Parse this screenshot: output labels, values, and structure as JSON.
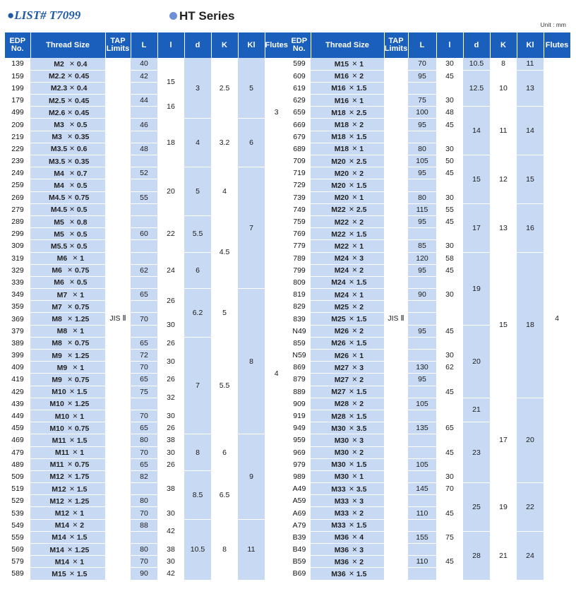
{
  "header": {
    "list_title": "●LIST# T7099",
    "series_title": "HT Series",
    "unit": "Unit : mm"
  },
  "columns": [
    "EDP No.",
    "Thread Size",
    "TAP Limits",
    "L",
    "l",
    "d",
    "K",
    "Kl",
    "Flutes"
  ],
  "left_table": {
    "rows": [
      {
        "edp": "139",
        "thread": "M2 × 0.4",
        "L": "40"
      },
      {
        "edp": "159",
        "thread": "M2.2 × 0.45",
        "L": "42"
      },
      {
        "edp": "199",
        "thread": "M2.3 × 0.4",
        "L": ""
      },
      {
        "edp": "179",
        "thread": "M2.5 × 0.45",
        "L": "44"
      },
      {
        "edp": "499",
        "thread": "M2.6 × 0.45",
        "L": ""
      },
      {
        "edp": "209",
        "thread": "M3 × 0.5",
        "L": "46"
      },
      {
        "edp": "219",
        "thread": "M3 × 0.35",
        "L": ""
      },
      {
        "edp": "229",
        "thread": "M3.5 × 0.6",
        "L": "48"
      },
      {
        "edp": "239",
        "thread": "M3.5 × 0.35",
        "L": ""
      },
      {
        "edp": "249",
        "thread": "M4 × 0.7",
        "L": "52"
      },
      {
        "edp": "259",
        "thread": "M4 × 0.5",
        "L": ""
      },
      {
        "edp": "269",
        "thread": "M4.5 × 0.75",
        "L": "55"
      },
      {
        "edp": "279",
        "thread": "M4.5 × 0.5",
        "L": ""
      },
      {
        "edp": "289",
        "thread": "M5 × 0.8",
        "L": ""
      },
      {
        "edp": "299",
        "thread": "M5 × 0.5",
        "L": "60"
      },
      {
        "edp": "309",
        "thread": "M5.5 × 0.5",
        "L": ""
      },
      {
        "edp": "319",
        "thread": "M6 × 1",
        "L": ""
      },
      {
        "edp": "329",
        "thread": "M6 × 0.75",
        "L": "62"
      },
      {
        "edp": "339",
        "thread": "M6 × 0.5",
        "L": ""
      },
      {
        "edp": "349",
        "thread": "M7 × 1",
        "L": "65"
      },
      {
        "edp": "359",
        "thread": "M7 × 0.75",
        "L": ""
      },
      {
        "edp": "369",
        "thread": "M8 × 1.25",
        "L": "70"
      },
      {
        "edp": "379",
        "thread": "M8 × 1",
        "L": ""
      },
      {
        "edp": "389",
        "thread": "M8 × 0.75",
        "L": "65"
      },
      {
        "edp": "399",
        "thread": "M9 × 1.25",
        "L": "72"
      },
      {
        "edp": "409",
        "thread": "M9 × 1",
        "L": "70"
      },
      {
        "edp": "419",
        "thread": "M9 × 0.75",
        "L": "65"
      },
      {
        "edp": "429",
        "thread": "M10 × 1.5",
        "L": "75"
      },
      {
        "edp": "439",
        "thread": "M10 × 1.25",
        "L": ""
      },
      {
        "edp": "449",
        "thread": "M10 × 1",
        "L": "70"
      },
      {
        "edp": "459",
        "thread": "M10 × 0.75",
        "L": "65"
      },
      {
        "edp": "469",
        "thread": "M11 × 1.5",
        "L": "80"
      },
      {
        "edp": "479",
        "thread": "M11 × 1",
        "L": "70"
      },
      {
        "edp": "489",
        "thread": "M11 × 0.75",
        "L": "65"
      },
      {
        "edp": "509",
        "thread": "M12 × 1.75",
        "L": "82"
      },
      {
        "edp": "519",
        "thread": "M12 × 1.5",
        "L": ""
      },
      {
        "edp": "529",
        "thread": "M12 × 1.25",
        "L": "80"
      },
      {
        "edp": "539",
        "thread": "M12 × 1",
        "L": "70"
      },
      {
        "edp": "549",
        "thread": "M14 × 2",
        "L": "88"
      },
      {
        "edp": "559",
        "thread": "M14 × 1.5",
        "L": ""
      },
      {
        "edp": "569",
        "thread": "M14 × 1.25",
        "L": "80"
      },
      {
        "edp": "579",
        "thread": "M14 × 1",
        "L": "70"
      },
      {
        "edp": "589",
        "thread": "M15 × 1.5",
        "L": "90"
      }
    ],
    "tap_limits": "JIS Ⅱ",
    "l_groups": [
      {
        "start": 0,
        "span": 1,
        "value": ""
      },
      {
        "start": 1,
        "span": 2,
        "value": "15"
      },
      {
        "start": 3,
        "span": 2,
        "value": "16"
      },
      {
        "start": 5,
        "span": 4,
        "value": "18"
      },
      {
        "start": 9,
        "span": 4,
        "value": "20"
      },
      {
        "start": 13,
        "span": 3,
        "value": "22"
      },
      {
        "start": 16,
        "span": 3,
        "value": "24"
      },
      {
        "start": 19,
        "span": 2,
        "value": "26"
      },
      {
        "start": 21,
        "span": 2,
        "value": "30"
      },
      {
        "start": 23,
        "span": 1,
        "value": "26"
      },
      {
        "start": 24,
        "span": 2,
        "value": "30"
      },
      {
        "start": 26,
        "span": 1,
        "value": "26"
      },
      {
        "start": 27,
        "span": 2,
        "value": "32"
      },
      {
        "start": 29,
        "span": 1,
        "value": "30"
      },
      {
        "start": 30,
        "span": 1,
        "value": "26"
      },
      {
        "start": 31,
        "span": 1,
        "value": "38"
      },
      {
        "start": 32,
        "span": 1,
        "value": "30"
      },
      {
        "start": 33,
        "span": 1,
        "value": "26"
      },
      {
        "start": 34,
        "span": 3,
        "value": "38"
      },
      {
        "start": 37,
        "span": 1,
        "value": "30"
      },
      {
        "start": 38,
        "span": 2,
        "value": "42"
      },
      {
        "start": 40,
        "span": 1,
        "value": "38"
      },
      {
        "start": 41,
        "span": 1,
        "value": "30"
      },
      {
        "start": 42,
        "span": 1,
        "value": "42"
      }
    ],
    "d_groups": [
      {
        "start": 0,
        "span": 5,
        "value": "3"
      },
      {
        "start": 5,
        "span": 4,
        "value": "4"
      },
      {
        "start": 9,
        "span": 4,
        "value": "5"
      },
      {
        "start": 13,
        "span": 3,
        "value": "5.5"
      },
      {
        "start": 16,
        "span": 3,
        "value": "6"
      },
      {
        "start": 19,
        "span": 4,
        "value": "6.2"
      },
      {
        "start": 23,
        "span": 8,
        "value": "7"
      },
      {
        "start": 31,
        "span": 3,
        "value": "8"
      },
      {
        "start": 34,
        "span": 4,
        "value": "8.5"
      },
      {
        "start": 38,
        "span": 5,
        "value": "10.5"
      }
    ],
    "k_groups": [
      {
        "start": 0,
        "span": 5,
        "value": "2.5"
      },
      {
        "start": 5,
        "span": 4,
        "value": "3.2"
      },
      {
        "start": 9,
        "span": 4,
        "value": "4"
      },
      {
        "start": 13,
        "span": 6,
        "value": "4.5"
      },
      {
        "start": 19,
        "span": 4,
        "value": "5"
      },
      {
        "start": 23,
        "span": 8,
        "value": "5.5"
      },
      {
        "start": 31,
        "span": 3,
        "value": "6"
      },
      {
        "start": 34,
        "span": 4,
        "value": "6.5"
      },
      {
        "start": 38,
        "span": 5,
        "value": "8"
      }
    ],
    "kl_groups": [
      {
        "start": 0,
        "span": 5,
        "value": "5"
      },
      {
        "start": 5,
        "span": 4,
        "value": "6"
      },
      {
        "start": 9,
        "span": 10,
        "value": "7"
      },
      {
        "start": 19,
        "span": 12,
        "value": "8"
      },
      {
        "start": 31,
        "span": 7,
        "value": "9"
      },
      {
        "start": 38,
        "span": 5,
        "value": "11"
      }
    ],
    "flutes_groups": [
      {
        "start": 0,
        "span": 9,
        "value": "3"
      },
      {
        "start": 9,
        "span": 34,
        "value": "4"
      }
    ]
  },
  "right_table": {
    "rows": [
      {
        "edp": "599",
        "thread": "M15 × 1",
        "L": "70",
        "l": "30"
      },
      {
        "edp": "609",
        "thread": "M16 × 2",
        "L": "95",
        "l": "45"
      },
      {
        "edp": "619",
        "thread": "M16 × 1.5",
        "L": "",
        "l": ""
      },
      {
        "edp": "629",
        "thread": "M16 × 1",
        "L": "75",
        "l": "30"
      },
      {
        "edp": "659",
        "thread": "M18 × 2.5",
        "L": "100",
        "l": "48"
      },
      {
        "edp": "669",
        "thread": "M18 × 2",
        "L": "95",
        "l": "45"
      },
      {
        "edp": "679",
        "thread": "M18 × 1.5",
        "L": "",
        "l": ""
      },
      {
        "edp": "689",
        "thread": "M18 × 1",
        "L": "80",
        "l": "30"
      },
      {
        "edp": "709",
        "thread": "M20 × 2.5",
        "L": "105",
        "l": "50"
      },
      {
        "edp": "719",
        "thread": "M20 × 2",
        "L": "95",
        "l": "45"
      },
      {
        "edp": "729",
        "thread": "M20 × 1.5",
        "L": "",
        "l": ""
      },
      {
        "edp": "739",
        "thread": "M20 × 1",
        "L": "80",
        "l": "30"
      },
      {
        "edp": "749",
        "thread": "M22 × 2.5",
        "L": "115",
        "l": "55"
      },
      {
        "edp": "759",
        "thread": "M22 × 2",
        "L": "95",
        "l": "45"
      },
      {
        "edp": "769",
        "thread": "M22 × 1.5",
        "L": "",
        "l": ""
      },
      {
        "edp": "779",
        "thread": "M22 × 1",
        "L": "85",
        "l": "30"
      },
      {
        "edp": "789",
        "thread": "M24 × 3",
        "L": "120",
        "l": "58"
      },
      {
        "edp": "799",
        "thread": "M24 × 2",
        "L": "95",
        "l": "45"
      },
      {
        "edp": "809",
        "thread": "M24 × 1.5",
        "L": "",
        "l": ""
      },
      {
        "edp": "819",
        "thread": "M24 × 1",
        "L": "90",
        "l": "30"
      },
      {
        "edp": "829",
        "thread": "M25 × 2",
        "L": "",
        "l": ""
      },
      {
        "edp": "839",
        "thread": "M25 × 1.5",
        "L": "",
        "l": ""
      },
      {
        "edp": "N49",
        "thread": "M26 × 2",
        "L": "95",
        "l": "45"
      },
      {
        "edp": "859",
        "thread": "M26 × 1.5",
        "L": "",
        "l": ""
      },
      {
        "edp": "N59",
        "thread": "M26 × 1",
        "L": "",
        "l": "30"
      },
      {
        "edp": "869",
        "thread": "M27 × 3",
        "L": "130",
        "l": "62"
      },
      {
        "edp": "879",
        "thread": "M27 × 2",
        "L": "95",
        "l": ""
      },
      {
        "edp": "889",
        "thread": "M27 × 1.5",
        "L": "",
        "l": "45"
      },
      {
        "edp": "909",
        "thread": "M28 × 2",
        "L": "105",
        "l": ""
      },
      {
        "edp": "919",
        "thread": "M28 × 1.5",
        "L": "",
        "l": ""
      },
      {
        "edp": "949",
        "thread": "M30 × 3.5",
        "L": "135",
        "l": "65"
      },
      {
        "edp": "959",
        "thread": "M30 × 3",
        "L": "",
        "l": ""
      },
      {
        "edp": "969",
        "thread": "M30 × 2",
        "L": "",
        "l": "45"
      },
      {
        "edp": "979",
        "thread": "M30 × 1.5",
        "L": "105",
        "l": ""
      },
      {
        "edp": "989",
        "thread": "M30 × 1",
        "L": "",
        "l": "30"
      },
      {
        "edp": "A49",
        "thread": "M33 × 3.5",
        "L": "145",
        "l": "70"
      },
      {
        "edp": "A59",
        "thread": "M33 × 3",
        "L": "",
        "l": ""
      },
      {
        "edp": "A69",
        "thread": "M33 × 2",
        "L": "110",
        "l": "45"
      },
      {
        "edp": "A79",
        "thread": "M33 × 1.5",
        "L": "",
        "l": ""
      },
      {
        "edp": "B39",
        "thread": "M36 × 4",
        "L": "155",
        "l": "75"
      },
      {
        "edp": "B49",
        "thread": "M36 × 3",
        "L": "",
        "l": ""
      },
      {
        "edp": "B59",
        "thread": "M36 × 2",
        "L": "110",
        "l": "45"
      },
      {
        "edp": "B69",
        "thread": "M36 × 1.5",
        "L": "",
        "l": ""
      }
    ],
    "tap_limits": "JIS Ⅱ",
    "d_groups": [
      {
        "start": 0,
        "span": 1,
        "value": "10.5"
      },
      {
        "start": 1,
        "span": 3,
        "value": "12.5"
      },
      {
        "start": 4,
        "span": 4,
        "value": "14"
      },
      {
        "start": 8,
        "span": 4,
        "value": "15"
      },
      {
        "start": 12,
        "span": 4,
        "value": "17"
      },
      {
        "start": 16,
        "span": 6,
        "value": "19"
      },
      {
        "start": 22,
        "span": 6,
        "value": "20"
      },
      {
        "start": 28,
        "span": 2,
        "value": "21"
      },
      {
        "start": 30,
        "span": 5,
        "value": "23"
      },
      {
        "start": 35,
        "span": 4,
        "value": "25"
      },
      {
        "start": 39,
        "span": 4,
        "value": "28"
      }
    ],
    "k_groups": [
      {
        "start": 0,
        "span": 1,
        "value": "8"
      },
      {
        "start": 1,
        "span": 3,
        "value": "10"
      },
      {
        "start": 4,
        "span": 4,
        "value": "11"
      },
      {
        "start": 8,
        "span": 4,
        "value": "12"
      },
      {
        "start": 12,
        "span": 4,
        "value": "13"
      },
      {
        "start": 16,
        "span": 12,
        "value": "15"
      },
      {
        "start": 28,
        "span": 7,
        "value": "17"
      },
      {
        "start": 35,
        "span": 4,
        "value": "19"
      },
      {
        "start": 39,
        "span": 4,
        "value": "21"
      }
    ],
    "kl_groups": [
      {
        "start": 0,
        "span": 1,
        "value": "11"
      },
      {
        "start": 1,
        "span": 3,
        "value": "13"
      },
      {
        "start": 4,
        "span": 4,
        "value": "14"
      },
      {
        "start": 8,
        "span": 4,
        "value": "15"
      },
      {
        "start": 12,
        "span": 4,
        "value": "16"
      },
      {
        "start": 16,
        "span": 12,
        "value": "18"
      },
      {
        "start": 28,
        "span": 7,
        "value": "20"
      },
      {
        "start": 35,
        "span": 4,
        "value": "22"
      },
      {
        "start": 39,
        "span": 4,
        "value": "24"
      }
    ],
    "flutes_groups": [
      {
        "start": 0,
        "span": 43,
        "value": "4"
      }
    ]
  }
}
